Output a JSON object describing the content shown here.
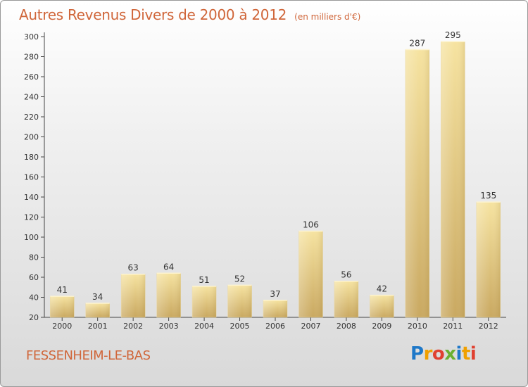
{
  "title": {
    "main": "Autres Revenus Divers de 2000 à 2012",
    "unit": "(en milliers d'€)"
  },
  "footer": {
    "place": "FESSENHEIM-LE-BAS"
  },
  "logo": {
    "letters": [
      "P",
      "r",
      "o",
      "x",
      "i",
      "t",
      "i"
    ],
    "colors": [
      "#1e78c8",
      "#f0a000",
      "#e04030",
      "#6ab030",
      "#1e78c8",
      "#f0a000",
      "#e04030"
    ]
  },
  "colors": {
    "title": "#d0663a",
    "bar_light": "#f6e3a0",
    "bar_dark": "#c9a860",
    "axis": "#444444",
    "grid": "#dddddd"
  },
  "chart_data": {
    "type": "bar",
    "title": "Autres Revenus Divers de 2000 à 2012",
    "subtitle": "(en milliers d'€)",
    "categories": [
      "2000",
      "2001",
      "2002",
      "2003",
      "2004",
      "2005",
      "2006",
      "2007",
      "2008",
      "2009",
      "2010",
      "2011",
      "2012"
    ],
    "values": [
      41,
      34,
      63,
      64,
      51,
      52,
      37,
      106,
      56,
      42,
      287,
      295,
      135
    ],
    "data_labels": [
      "41",
      "34",
      "63",
      "64",
      "51",
      "52",
      "37",
      "106",
      "56",
      "42",
      "287",
      "295",
      "135"
    ],
    "ylim": [
      20,
      300
    ],
    "yticks": [
      20,
      40,
      60,
      80,
      100,
      120,
      140,
      160,
      180,
      200,
      220,
      240,
      260,
      280,
      300
    ],
    "grid": false,
    "legend": "none"
  }
}
